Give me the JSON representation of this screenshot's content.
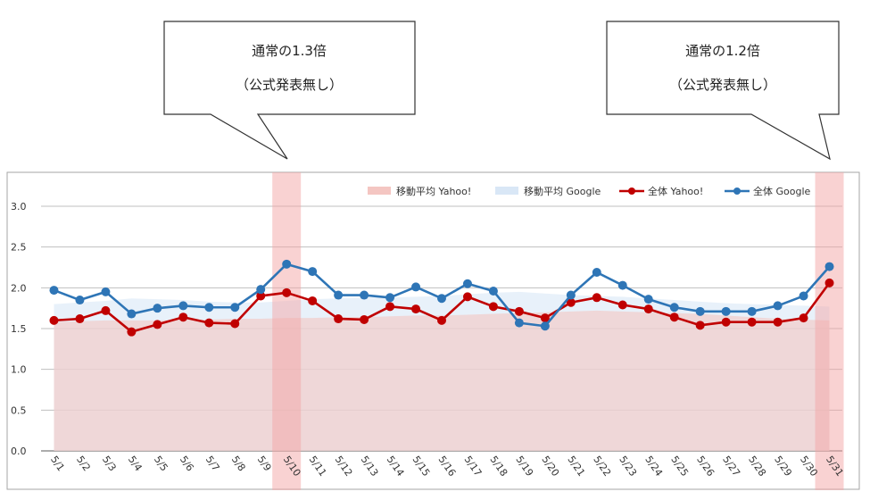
{
  "callouts": [
    {
      "line1": "通常の1.3倍",
      "line2": "（公式発表無し）",
      "target": "5/10"
    },
    {
      "line1": "通常の1.2倍",
      "line2": "（公式発表無し）",
      "target": "5/31"
    }
  ],
  "chart_data": {
    "type": "line",
    "title": "",
    "xlabel": "",
    "ylabel": "",
    "ylim": [
      0,
      3.0
    ],
    "yticks": [
      "0.0",
      "0.5",
      "1.0",
      "1.5",
      "2.0",
      "2.5",
      "3.0"
    ],
    "grid": true,
    "legend_position": "top-right",
    "categories": [
      "5/1",
      "5/2",
      "5/3",
      "5/4",
      "5/5",
      "5/6",
      "5/7",
      "5/8",
      "5/9",
      "5/10",
      "5/11",
      "5/12",
      "5/13",
      "5/14",
      "5/15",
      "5/16",
      "5/17",
      "5/18",
      "5/19",
      "5/20",
      "5/21",
      "5/22",
      "5/23",
      "5/24",
      "5/25",
      "5/26",
      "5/27",
      "5/28",
      "5/29",
      "5/30",
      "5/31"
    ],
    "highlighted_categories": [
      "5/10",
      "5/31"
    ],
    "series": [
      {
        "name": "移動平均 Yahoo!",
        "kind": "area",
        "color": "#f4c6c2",
        "values": [
          1.58,
          1.59,
          1.6,
          1.6,
          1.6,
          1.61,
          1.61,
          1.62,
          1.62,
          1.63,
          1.63,
          1.64,
          1.64,
          1.65,
          1.66,
          1.66,
          1.67,
          1.68,
          1.69,
          1.7,
          1.71,
          1.72,
          1.71,
          1.7,
          1.69,
          1.68,
          1.66,
          1.64,
          1.62,
          1.61,
          1.6
        ]
      },
      {
        "name": "移動平均 Google",
        "kind": "area",
        "color": "#d9e7f6",
        "values": [
          1.8,
          1.82,
          1.84,
          1.87,
          1.86,
          1.85,
          1.83,
          1.82,
          1.82,
          1.84,
          1.86,
          1.87,
          1.88,
          1.88,
          1.89,
          1.9,
          1.92,
          1.94,
          1.95,
          1.93,
          1.91,
          1.9,
          1.89,
          1.87,
          1.85,
          1.83,
          1.81,
          1.8,
          1.79,
          1.78,
          1.77
        ]
      },
      {
        "name": "全体 Yahoo!",
        "kind": "line",
        "color": "#c00000",
        "values": [
          1.6,
          1.62,
          1.72,
          1.46,
          1.55,
          1.64,
          1.57,
          1.56,
          1.9,
          1.94,
          1.84,
          1.62,
          1.61,
          1.77,
          1.74,
          1.6,
          1.89,
          1.77,
          1.71,
          1.63,
          1.82,
          1.88,
          1.79,
          1.74,
          1.64,
          1.54,
          1.58,
          1.58,
          1.58,
          1.63,
          2.06
        ]
      },
      {
        "name": "全体 Google",
        "kind": "line",
        "color": "#2e75b6",
        "values": [
          1.97,
          1.85,
          1.95,
          1.68,
          1.75,
          1.78,
          1.76,
          1.76,
          1.98,
          2.29,
          2.2,
          1.91,
          1.91,
          1.88,
          2.01,
          1.87,
          2.05,
          1.96,
          1.57,
          1.53,
          1.91,
          2.19,
          2.03,
          1.86,
          1.76,
          1.71,
          1.71,
          1.71,
          1.78,
          1.9,
          2.26
        ]
      }
    ]
  }
}
